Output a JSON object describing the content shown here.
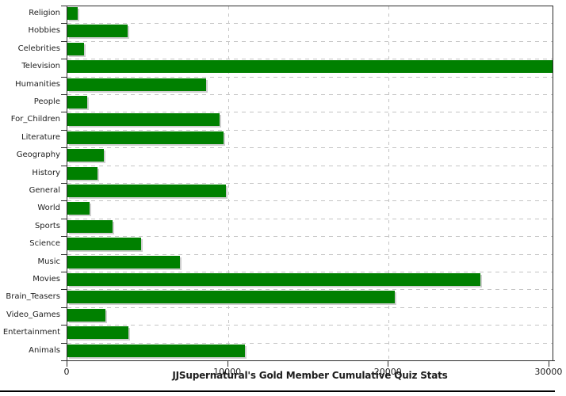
{
  "chart_data": {
    "type": "bar",
    "orientation": "horizontal",
    "title": "JJSupernatural's Gold Member Cumulative Quiz Stats",
    "categories": [
      "Religion",
      "Hobbies",
      "Celebrities",
      "Television",
      "Humanities",
      "People",
      "For_Children",
      "Literature",
      "Geography",
      "History",
      "General",
      "World",
      "Sports",
      "Science",
      "Music",
      "Movies",
      "Brain_Teasers",
      "Video_Games",
      "Entertainment",
      "Animals"
    ],
    "values": [
      620,
      3750,
      1020,
      30500,
      8620,
      1230,
      9490,
      9740,
      2250,
      1860,
      9850,
      1390,
      2820,
      4600,
      7000,
      25700,
      20400,
      2350,
      3810,
      11030
    ],
    "xlim": [
      0,
      30200
    ],
    "x_ticks": [
      0,
      10000,
      20000,
      30000
    ],
    "x_tick_labels": [
      "0",
      "10000",
      "20000",
      "30000"
    ],
    "clipped_categories": [
      "Television"
    ],
    "grid": "dashed",
    "legend": "none"
  },
  "colors": {
    "bar": "#008000",
    "bar_shadow": "#cfcfcf",
    "grid": "#c4c4c4",
    "axis": "#2b2b2b",
    "text": "#1d1d1d",
    "background": "#ffffff",
    "window_border": "#000000"
  }
}
